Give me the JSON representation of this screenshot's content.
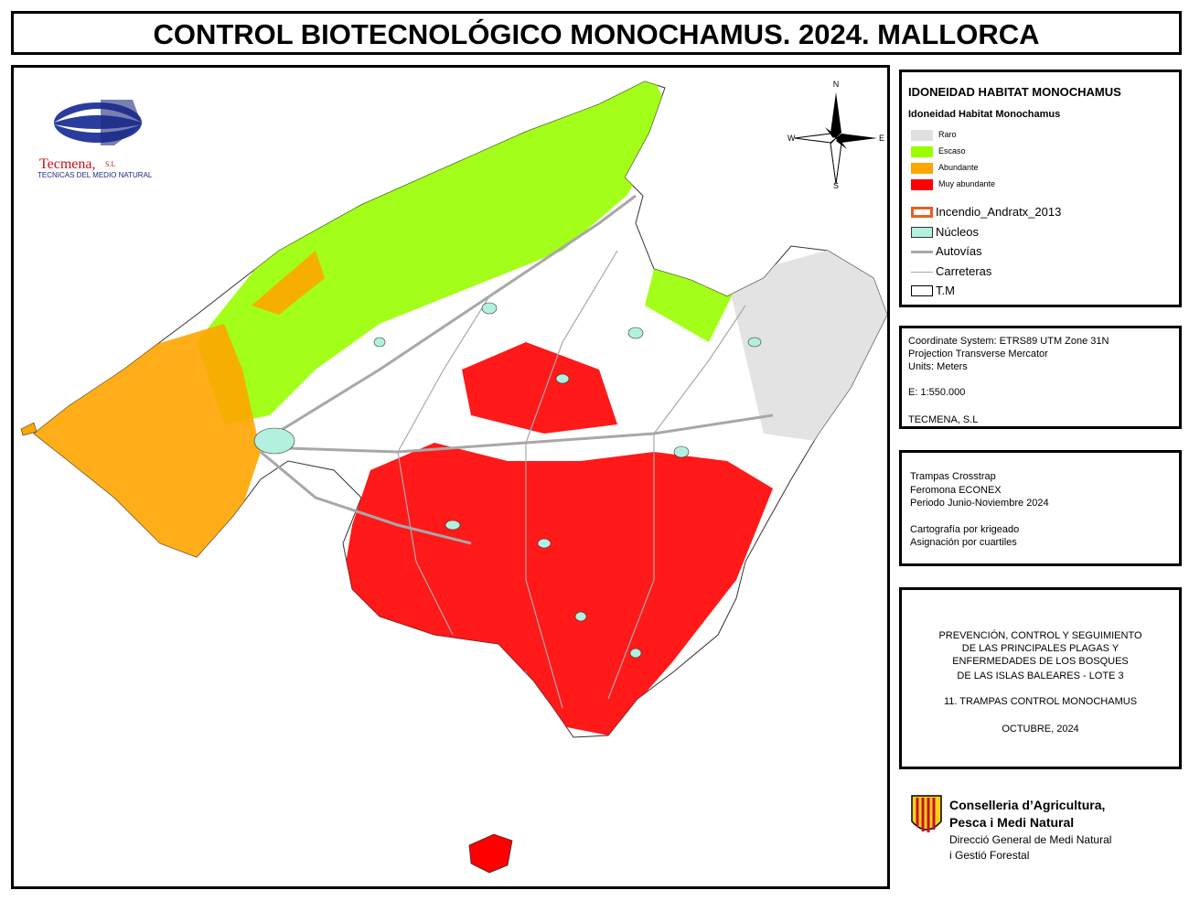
{
  "title": "CONTROL BIOTECNOLÓGICO MONOCHAMUS. 2024. MALLORCA",
  "logo": {
    "name": "Tecmena,",
    "suffix": "S.L",
    "tagline": "TECNICAS DEL MEDIO NATURAL"
  },
  "compass": {
    "n": "N",
    "s": "S",
    "e": "E",
    "w": "W"
  },
  "legend": {
    "title": "IDONEIDAD HABITAT MONOCHAMUS",
    "subtitle": "Idoneidad Habitat Monochamus",
    "classes": [
      {
        "label": "Raro",
        "color": "#e0e0e0"
      },
      {
        "label": "Escaso",
        "color": "#99ff00"
      },
      {
        "label": "Abundante",
        "color": "#ffa500"
      },
      {
        "label": "Muy abundante",
        "color": "#ff0000"
      }
    ],
    "layers": [
      {
        "label": "Incendio_Andratx_2013"
      },
      {
        "label": "Núcleos",
        "color": "#b3f0e0"
      },
      {
        "label": "Autovías"
      },
      {
        "label": "Carreteras"
      },
      {
        "label": "T.M"
      }
    ]
  },
  "info": [
    "Coordinate System: ETRS89 UTM Zone 31N",
    "Projection Transverse Mercator",
    "Units: Meters",
    "E: 1:550.000",
    "TECMENA, S.L"
  ],
  "method": [
    "Trampas Crosstrap",
    "Feromona ECONEX",
    "Periodo Junio-Noviembre 2024",
    "Cartografía por krigeado",
    "Asignación por cuartiles"
  ],
  "project": [
    "PREVENCIÓN, CONTROL Y SEGUIMIENTO",
    "DE LAS PRINCIPALES PLAGAS Y",
    "ENFERMEDADES DE LOS BOSQUES",
    "DE LAS ISLAS BALEARES - LOTE 3",
    "11. TRAMPAS CONTROL MONOCHAMUS",
    "OCTUBRE, 2024"
  ],
  "institution": [
    "Conselleria d’Agricultura,",
    "Pesca i Medi Natural",
    "Direcció General de Medi Natural",
    "i Gestió Forestal"
  ]
}
